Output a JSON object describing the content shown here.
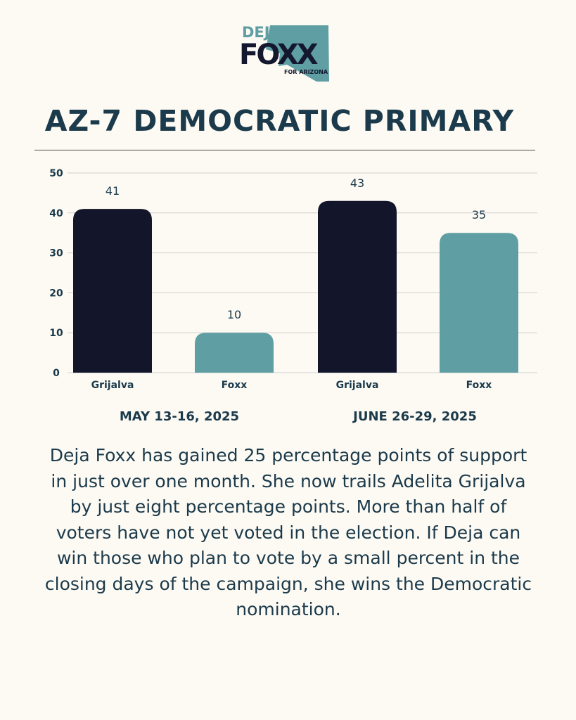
{
  "logo": {
    "first": "DEJA",
    "last": "FOXX",
    "tagline": "FOR ARIZONA",
    "colors": {
      "teal": "#5f9ea3",
      "navy": "#13182e"
    },
    "icon": "arizona-state-shape"
  },
  "headline": "AZ-7 DEMOCRATIC PRIMARY",
  "chart_data": {
    "type": "bar",
    "categories": [
      "Grijalva",
      "Foxx",
      "Grijalva",
      "Foxx"
    ],
    "values": [
      41,
      10,
      43,
      35
    ],
    "data_labels": [
      "41",
      "10",
      "43",
      "35"
    ],
    "bar_colors": [
      "#13152a",
      "#5f9ea3",
      "#13152a",
      "#5f9ea3"
    ],
    "groups": [
      {
        "label": "MAY 13-16, 2025",
        "categories": [
          0,
          1
        ]
      },
      {
        "label": "JUNE 26-29, 2025",
        "categories": [
          2,
          3
        ]
      }
    ],
    "ylim": [
      0,
      50
    ],
    "yticks": [
      0,
      10,
      20,
      30,
      40,
      50
    ],
    "grid": true,
    "legend": "none",
    "title": "",
    "xlabel": "",
    "ylabel": ""
  },
  "body": "Deja Foxx has gained 25 percentage points of support in just over one month. She now trails Adelita Grijalva by just eight percentage points. More than half of voters have not yet voted in the election. If Deja can win those who plan to vote by a small percent in the closing days of the campaign, she wins the Democratic nomination."
}
